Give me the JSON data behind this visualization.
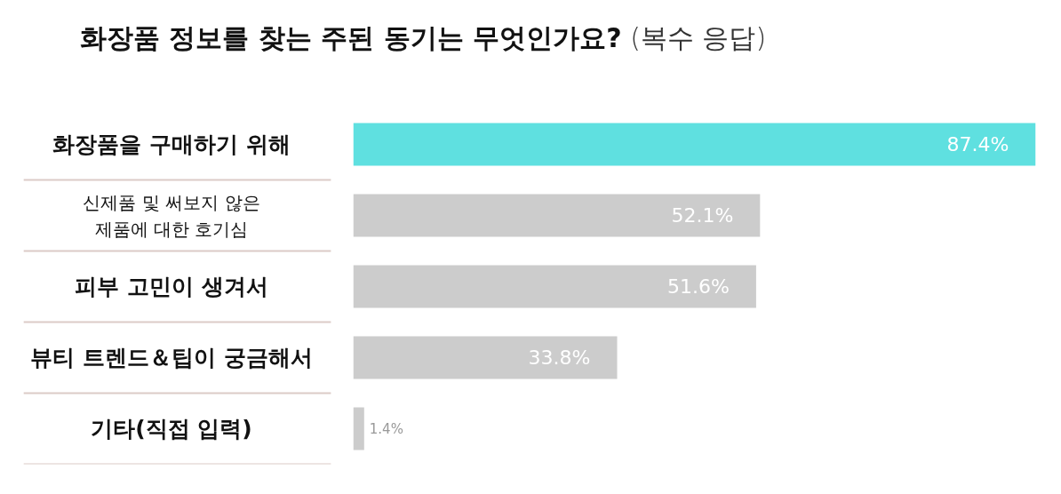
{
  "chart_data": {
    "type": "bar",
    "orientation": "horizontal",
    "title": "화장품 정보를 찾는 주된 동기는 무엇인가요?",
    "subtitle": "(복수 응답)",
    "categories": [
      "화장품을 구매하기 위해",
      "신제품 및 써보지 않은\n제품에 대한 호기심",
      "피부 고민이 생겨서",
      "뷰티 트렌드＆팁이 궁금해서",
      "기타(직접 입력)"
    ],
    "values": [
      87.4,
      52.1,
      51.6,
      33.8,
      1.4
    ],
    "colors": [
      "#5fe0e0",
      "#cccccc",
      "#cccccc",
      "#cccccc",
      "#cccccc"
    ],
    "value_labels": [
      "87.4%",
      "52.1%",
      "51.6%",
      "33.8%",
      "1.4%"
    ]
  }
}
